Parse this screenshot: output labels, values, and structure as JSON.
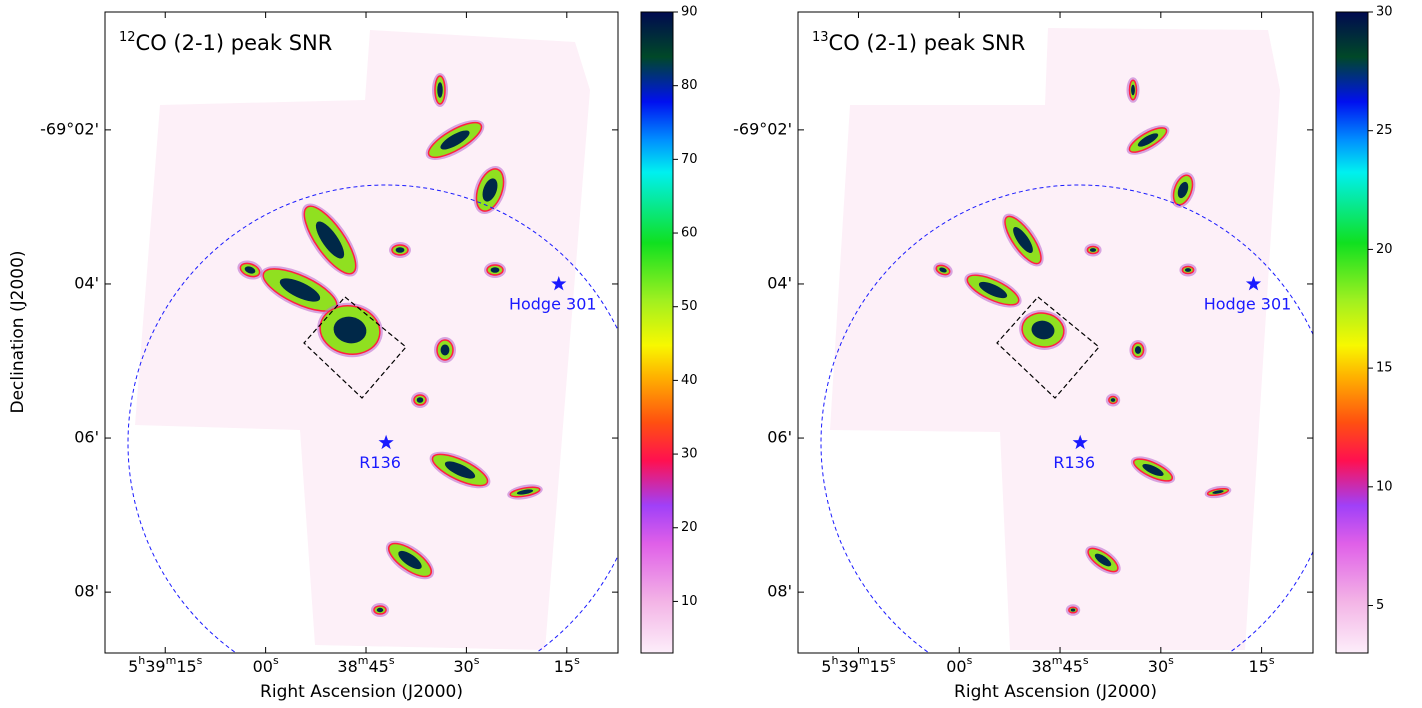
{
  "chart_data": [
    {
      "type": "image",
      "isotope": "12",
      "title": "CO (2-1) peak SNR",
      "xlabel": "Right Ascension (J2000)",
      "ylabel": "Declination (J2000)",
      "xlim": [
        20364,
        20287.35
      ],
      "ylim": [
        -4148.79,
        -4140.47
      ],
      "xticks": [
        {
          "value": 20355,
          "label": "5h39m15s"
        },
        {
          "value": 20340,
          "label": "00s"
        },
        {
          "value": 20325,
          "label": "38m45s"
        },
        {
          "value": 20310,
          "label": "30s"
        },
        {
          "value": 20295,
          "label": "15s"
        }
      ],
      "yticks": [
        {
          "value": -4142,
          "label": "-69°02'"
        },
        {
          "value": -4144,
          "label": "04'"
        },
        {
          "value": -4146,
          "label": "06'"
        },
        {
          "value": -4148,
          "label": "08'"
        }
      ],
      "clim": [
        3,
        90
      ],
      "cticks": [
        10,
        20,
        30,
        40,
        50,
        60,
        70,
        80,
        90
      ],
      "annotations": [
        {
          "text": "R136",
          "ra": 20322.0,
          "dec": -4146.06
        },
        {
          "text": "Hodge 301",
          "ra": 20296.2,
          "dec": -4144.0
        }
      ]
    },
    {
      "type": "image",
      "isotope": "13",
      "title": "CO (2-1) peak SNR",
      "xlabel": "Right Ascension (J2000)",
      "xlim": [
        20364,
        20287.35
      ],
      "ylim": [
        -4148.79,
        -4140.47
      ],
      "xticks": [
        {
          "value": 20355,
          "label": "5h39m15s"
        },
        {
          "value": 20340,
          "label": "00s"
        },
        {
          "value": 20325,
          "label": "38m45s"
        },
        {
          "value": 20310,
          "label": "30s"
        },
        {
          "value": 20295,
          "label": "15s"
        }
      ],
      "yticks": [
        {
          "value": -4142,
          "label": "-69°02'"
        },
        {
          "value": -4144,
          "label": "04'"
        },
        {
          "value": -4146,
          "label": "06'"
        },
        {
          "value": -4148,
          "label": "08'"
        }
      ],
      "clim": [
        3,
        30
      ],
      "cticks": [
        5,
        10,
        15,
        20,
        25,
        30
      ],
      "annotations": [
        {
          "text": "R136",
          "ra": 20322.0,
          "dec": -4146.06
        },
        {
          "text": "Hodge 301",
          "ra": 20296.2,
          "dec": -4144.0
        }
      ]
    }
  ]
}
